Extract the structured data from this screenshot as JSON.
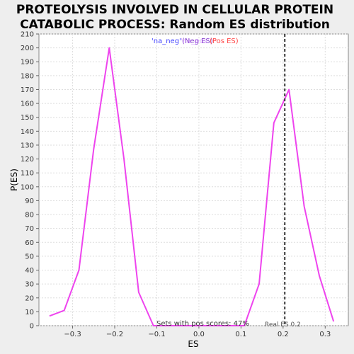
{
  "chart_data": {
    "type": "line",
    "title": "PROTEOLYSIS INVOLVED IN CELLULAR PROTEIN CATABOLIC PROCESS: Random ES distribution",
    "title_lines": [
      "PROTEOLYSIS INVOLVED IN CELLULAR PROTEIN",
      "CATABOLIC PROCESS: Random ES distribution"
    ],
    "xlabel": "ES",
    "ylabel": "P(ES)",
    "xlim": [
      -0.38,
      0.355
    ],
    "ylim": [
      0,
      210
    ],
    "x_ticks": [
      -0.3,
      -0.2,
      -0.1,
      0.0,
      0.1,
      0.2,
      0.3
    ],
    "x_tick_labels": [
      "−0.3",
      "−0.2",
      "−0.1",
      "0.0",
      "0.1",
      "0.2",
      "0.3"
    ],
    "y_ticks": [
      0,
      10,
      20,
      30,
      40,
      50,
      60,
      70,
      80,
      90,
      100,
      110,
      120,
      130,
      140,
      150,
      160,
      170,
      180,
      190,
      200,
      210
    ],
    "grid": true,
    "legend": {
      "placement": "top-center",
      "items": [
        {
          "label": "'na_neg'",
          "color": "#4444ff"
        },
        {
          "label": "(Neg ES)",
          "color": "#8844cc"
        },
        {
          "label": "'na_pos'",
          "color": "#bb66ff"
        },
        {
          "label": "(Pos ES)",
          "color": "#ff4444"
        }
      ]
    },
    "series": [
      {
        "color": "#ee44ee",
        "x": [
          -0.355,
          -0.32,
          -0.285,
          -0.25,
          -0.213,
          -0.178,
          -0.143,
          -0.108,
          -0.072,
          -0.036,
          0.0,
          0.036,
          0.072,
          0.108,
          0.143,
          0.178,
          0.214,
          0.25,
          0.286,
          0.32
        ],
        "y": [
          7,
          11,
          40,
          127,
          200,
          120,
          24,
          0,
          0,
          0,
          0,
          0,
          0,
          0,
          30,
          146,
          170,
          86,
          36,
          3
        ]
      }
    ],
    "reference_line": {
      "x": 0.204,
      "label": "Real ES 0.2",
      "style": "dashed",
      "color": "#333333"
    },
    "annotations": [
      {
        "text": "Sets with pos scores: 47%"
      }
    ]
  }
}
